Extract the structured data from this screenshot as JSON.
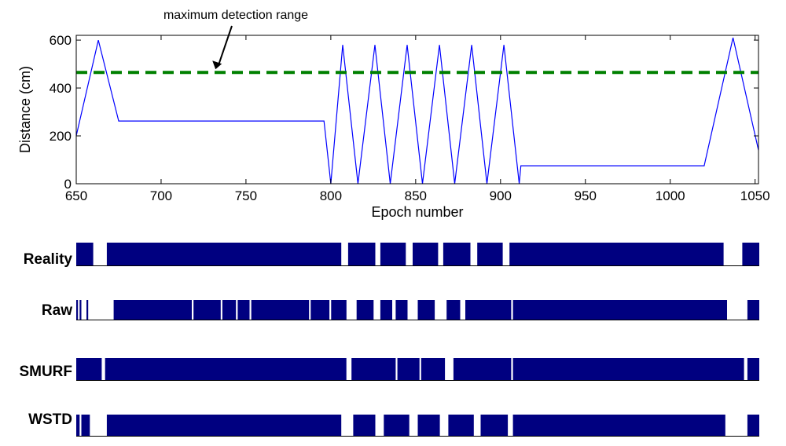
{
  "chart_data": {
    "type": "line",
    "xlabel": "Epoch number",
    "ylabel": "Distance (cm)",
    "xlim": [
      650,
      1052
    ],
    "ylim": [
      0,
      620
    ],
    "xticks": [
      650,
      700,
      750,
      800,
      850,
      900,
      950,
      1000,
      1050
    ],
    "yticks": [
      0,
      200,
      400,
      600
    ],
    "grid": false,
    "series": [
      {
        "color": "#0000ff",
        "x": [
          650,
          663,
          675,
          796,
          800,
          807,
          816,
          826,
          835,
          845,
          854,
          864,
          873,
          883,
          892,
          902,
          911,
          912,
          1020,
          1037,
          1052
        ],
        "y": [
          200,
          600,
          262,
          262,
          0,
          580,
          0,
          580,
          0,
          580,
          0,
          580,
          0,
          580,
          0,
          580,
          0,
          75,
          75,
          610,
          140
        ]
      }
    ],
    "reference_line": {
      "y": 465,
      "color": "#008000",
      "style": "dashed"
    },
    "annotation": {
      "text": "maximum detection range",
      "arrow_to": {
        "x": 733,
        "y": 465
      }
    },
    "tracks_xlim": [
      650,
      1052
    ],
    "tracks": [
      {
        "label": "Reality",
        "color": "#000080",
        "segments": [
          [
            650,
            660
          ],
          [
            668,
            806
          ],
          [
            810,
            826
          ],
          [
            829,
            844
          ],
          [
            848,
            863
          ],
          [
            866,
            882
          ],
          [
            886,
            901
          ],
          [
            905,
            1031
          ],
          [
            1042,
            1052
          ]
        ]
      },
      {
        "label": "Raw",
        "color": "#000080",
        "segments": [
          [
            650,
            651
          ],
          [
            652,
            653
          ],
          [
            656,
            657
          ],
          [
            672,
            718
          ],
          [
            719,
            735
          ],
          [
            736,
            744
          ],
          [
            745,
            752
          ],
          [
            753,
            787
          ],
          [
            788,
            799
          ],
          [
            800,
            809
          ],
          [
            815,
            825
          ],
          [
            829,
            836
          ],
          [
            838,
            845
          ],
          [
            851,
            861
          ],
          [
            868,
            876
          ],
          [
            879,
            906
          ],
          [
            907,
            1033
          ],
          [
            1045,
            1052
          ]
        ]
      },
      {
        "label": "SMURF",
        "color": "#000080",
        "segments": [
          [
            650,
            665
          ],
          [
            667,
            809
          ],
          [
            812,
            838
          ],
          [
            839,
            852
          ],
          [
            853,
            867
          ],
          [
            872,
            906
          ],
          [
            907,
            1043
          ],
          [
            1045,
            1052
          ]
        ]
      },
      {
        "label": "WSTD",
        "color": "#000080",
        "segments": [
          [
            650,
            652
          ],
          [
            653,
            658
          ],
          [
            668,
            806
          ],
          [
            813,
            826
          ],
          [
            831,
            846
          ],
          [
            851,
            864
          ],
          [
            869,
            884
          ],
          [
            888,
            904
          ],
          [
            907,
            1032
          ],
          [
            1045,
            1052
          ]
        ]
      }
    ]
  }
}
